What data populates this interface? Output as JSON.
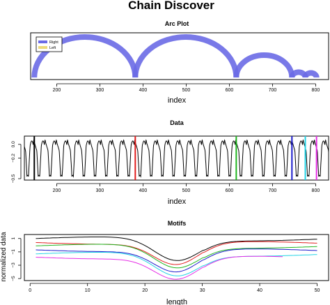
{
  "title": "Chain Discover",
  "chart_data": [
    {
      "type": "arc",
      "title": "Arc Plot",
      "xlabel": "index",
      "xlim": [
        125,
        830
      ],
      "xticks": [
        200,
        300,
        400,
        500,
        600,
        700,
        800
      ],
      "legend": {
        "placement": "top-left",
        "entries": [
          {
            "label": "Right",
            "color": "#6a6ae6"
          },
          {
            "label": "Left",
            "color": "#ecd97a"
          }
        ]
      },
      "arcs": [
        {
          "from": 148,
          "to": 382,
          "direction": "Right"
        },
        {
          "from": 382,
          "to": 616,
          "direction": "Right"
        },
        {
          "from": 616,
          "to": 745,
          "direction": "Right"
        },
        {
          "from": 745,
          "to": 776,
          "direction": "Right"
        },
        {
          "from": 776,
          "to": 802,
          "direction": "Right"
        }
      ]
    },
    {
      "type": "line",
      "title": "Data",
      "xlabel": "index",
      "xlim": [
        125,
        830
      ],
      "ylim": [
        -0.5,
        0.1
      ],
      "xticks": [
        200,
        300,
        400,
        500,
        600,
        700,
        800
      ],
      "yticks": [
        0.0,
        -0.2,
        -0.5
      ],
      "ytick_labels": [
        "0.0",
        "−0.2",
        "−0.5"
      ],
      "period": 26,
      "series_baseline": 0.03,
      "series_trough": -0.47,
      "chain_markers": [
        {
          "index": 148,
          "color": "#000000"
        },
        {
          "index": 382,
          "color": "#e01c1c"
        },
        {
          "index": 616,
          "color": "#1fb51f"
        },
        {
          "index": 745,
          "color": "#1a1acc"
        },
        {
          "index": 776,
          "color": "#22d3e6"
        },
        {
          "index": 802,
          "color": "#e62ee6"
        }
      ]
    },
    {
      "type": "line",
      "title": "Motifs",
      "xlabel": "length",
      "ylabel": "normalized data",
      "xlim": [
        -1,
        52
      ],
      "ylim": [
        -5.3,
        1.6
      ],
      "xticks": [
        0,
        10,
        20,
        30,
        40,
        50
      ],
      "yticks": [
        1,
        -1,
        -3,
        -5
      ],
      "ytick_labels": [
        "1",
        "−1",
        "−3",
        "−5"
      ],
      "series": [
        {
          "color": "#000000",
          "offset": 1.0
        },
        {
          "color": "#e01c1c",
          "offset": 0.4
        },
        {
          "color": "#1fb51f",
          "offset": -0.1
        },
        {
          "color": "#1a1acc",
          "offset": -0.7
        },
        {
          "color": "#22d3e6",
          "offset": -1.3
        },
        {
          "color": "#e62ee6",
          "offset": -1.8
        }
      ]
    }
  ]
}
